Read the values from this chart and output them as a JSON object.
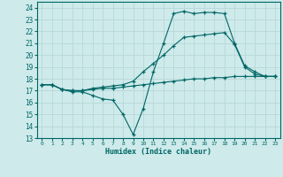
{
  "xlabel": "Humidex (Indice chaleur)",
  "bg_color": "#ceeaea",
  "line_color": "#006666",
  "grid_color": "#b8d8d8",
  "xlim": [
    -0.5,
    23.5
  ],
  "ylim": [
    13,
    24.5
  ],
  "xticks": [
    0,
    1,
    2,
    3,
    4,
    5,
    6,
    7,
    8,
    9,
    10,
    11,
    12,
    13,
    14,
    15,
    16,
    17,
    18,
    19,
    20,
    21,
    22,
    23
  ],
  "yticks": [
    13,
    14,
    15,
    16,
    17,
    18,
    19,
    20,
    21,
    22,
    23,
    24
  ],
  "line1_x": [
    0,
    1,
    2,
    3,
    4,
    5,
    6,
    7,
    8,
    9,
    10,
    11,
    12,
    13,
    14,
    15,
    16,
    17,
    18,
    19,
    20,
    21,
    22,
    23
  ],
  "line1_y": [
    17.5,
    17.5,
    17.1,
    17.0,
    17.0,
    17.1,
    17.2,
    17.2,
    17.3,
    17.4,
    17.5,
    17.6,
    17.7,
    17.8,
    17.9,
    18.0,
    18.0,
    18.1,
    18.1,
    18.2,
    18.2,
    18.2,
    18.2,
    18.2
  ],
  "line2_x": [
    0,
    1,
    2,
    3,
    4,
    5,
    6,
    7,
    8,
    9,
    10,
    11,
    12,
    13,
    14,
    15,
    16,
    17,
    18,
    19,
    20,
    21,
    22,
    23
  ],
  "line2_y": [
    17.5,
    17.5,
    17.1,
    16.9,
    16.9,
    16.6,
    16.3,
    16.2,
    15.0,
    13.3,
    15.5,
    18.6,
    21.0,
    23.5,
    23.7,
    23.5,
    23.6,
    23.6,
    23.5,
    21.0,
    19.1,
    18.6,
    18.2,
    18.2
  ],
  "line3_x": [
    0,
    1,
    2,
    3,
    4,
    5,
    6,
    7,
    8,
    9,
    10,
    11,
    12,
    13,
    14,
    15,
    16,
    17,
    18,
    19,
    20,
    21,
    22,
    23
  ],
  "line3_y": [
    17.5,
    17.5,
    17.1,
    17.0,
    17.0,
    17.2,
    17.3,
    17.4,
    17.5,
    17.8,
    18.6,
    19.3,
    20.0,
    20.8,
    21.5,
    21.6,
    21.7,
    21.8,
    21.9,
    20.9,
    19.0,
    18.4,
    18.2,
    18.2
  ]
}
